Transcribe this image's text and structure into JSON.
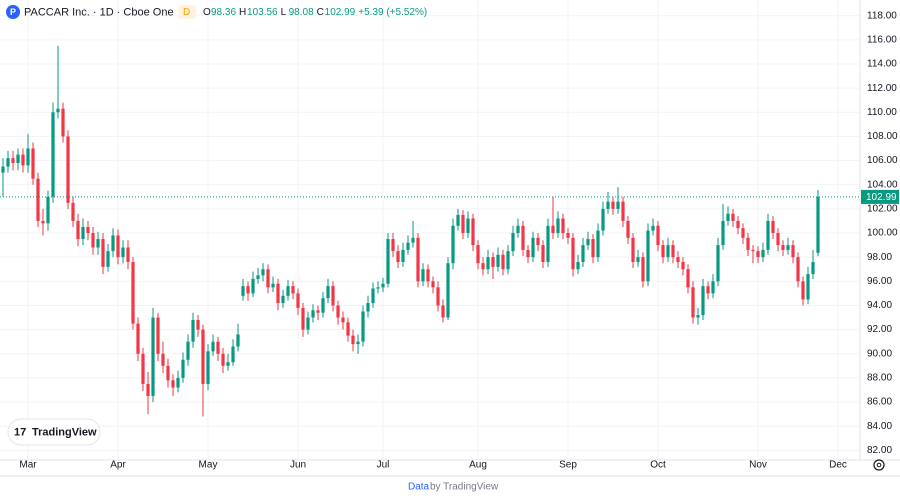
{
  "header": {
    "symbol": "PACCAR Inc. · 1D · Cboe One",
    "badge": "D",
    "quote": [
      {
        "label": "O",
        "value": "98.36"
      },
      {
        "label": "H",
        "value": "103.56"
      },
      {
        "label": "L",
        "value": "98.08"
      },
      {
        "label": "C",
        "value": "102.99"
      }
    ],
    "change": "+5.39 (+5.52%)"
  },
  "logo": "TradingView",
  "footer": {
    "link": "Data",
    "text": "by TradingView"
  },
  "chart_data": {
    "type": "candlestick",
    "up_color": "#089981",
    "down_color": "#f23645",
    "grid": true,
    "ylim": [
      81.2,
      119.3
    ],
    "xlim": [
      -0.6,
      171.4
    ],
    "yticks": [
      {
        "value": 82,
        "label": "82.00"
      },
      {
        "value": 84,
        "label": "84.00"
      },
      {
        "value": 86,
        "label": "86.00"
      },
      {
        "value": 88,
        "label": "88.00"
      },
      {
        "value": 90,
        "label": "90.00"
      },
      {
        "value": 92,
        "label": "92.00"
      },
      {
        "value": 94,
        "label": "94.00"
      },
      {
        "value": 96,
        "label": "96.00"
      },
      {
        "value": 98,
        "label": "98.00"
      },
      {
        "value": 100,
        "label": "100.00"
      },
      {
        "value": 102,
        "label": "102.00"
      },
      {
        "value": 104,
        "label": "104.00"
      },
      {
        "value": 106,
        "label": "106.00"
      },
      {
        "value": 108,
        "label": "108.00"
      },
      {
        "value": 110,
        "label": "110.00"
      },
      {
        "value": 112,
        "label": "112.00"
      },
      {
        "value": 114,
        "label": "114.00"
      },
      {
        "value": 116,
        "label": "116.00"
      },
      {
        "value": 118,
        "label": "118.00"
      }
    ],
    "xticks": [
      {
        "value": 5,
        "label": "Mar"
      },
      {
        "value": 23,
        "label": "Apr"
      },
      {
        "value": 41,
        "label": "May"
      },
      {
        "value": 59,
        "label": "Jun"
      },
      {
        "value": 76,
        "label": "Jul"
      },
      {
        "value": 95,
        "label": "Aug"
      },
      {
        "value": 113,
        "label": "Sep"
      },
      {
        "value": 131,
        "label": "Oct"
      },
      {
        "value": 151,
        "label": "Nov"
      },
      {
        "value": 167,
        "label": "Dec"
      }
    ],
    "ohlc": [
      [
        105.0,
        106.2,
        103.0,
        105.5
      ],
      [
        105.5,
        106.8,
        105.0,
        106.2
      ],
      [
        106.2,
        106.8,
        105.2,
        105.8
      ],
      [
        105.8,
        107.0,
        105.2,
        106.5
      ],
      [
        106.5,
        107.0,
        105.0,
        105.6
      ],
      [
        105.6,
        108.2,
        105.0,
        107.0
      ],
      [
        107.0,
        107.5,
        104.0,
        104.5
      ],
      [
        104.5,
        105.0,
        100.5,
        101.0
      ],
      [
        101.0,
        102.0,
        99.8,
        100.8
      ],
      [
        100.8,
        103.5,
        100.2,
        103.0
      ],
      [
        103.0,
        110.8,
        102.5,
        110.0
      ],
      [
        110.0,
        115.5,
        109.5,
        110.3
      ],
      [
        110.3,
        110.8,
        107.5,
        108.0
      ],
      [
        108.0,
        108.5,
        102.0,
        102.5
      ],
      [
        102.5,
        103.0,
        100.5,
        101.0
      ],
      [
        101.0,
        101.6,
        98.9,
        99.5
      ],
      [
        99.5,
        101.2,
        99.0,
        100.5
      ],
      [
        100.5,
        101.0,
        99.4,
        100.0
      ],
      [
        100.0,
        100.5,
        98.2,
        98.8
      ],
      [
        98.8,
        100.1,
        98.2,
        99.5
      ],
      [
        99.5,
        100.0,
        96.6,
        97.2
      ],
      [
        97.2,
        99.1,
        96.8,
        98.5
      ],
      [
        98.5,
        100.4,
        98.0,
        99.8
      ],
      [
        99.8,
        100.3,
        97.4,
        98.0
      ],
      [
        98.0,
        99.4,
        97.5,
        98.8
      ],
      [
        98.8,
        99.4,
        97.0,
        97.6
      ],
      [
        97.6,
        98.0,
        92.0,
        92.5
      ],
      [
        92.5,
        93.0,
        89.4,
        90.0
      ],
      [
        90.0,
        90.5,
        86.9,
        87.5
      ],
      [
        87.5,
        88.5,
        85.0,
        86.5
      ],
      [
        86.5,
        93.8,
        86.0,
        93.0
      ],
      [
        93.0,
        93.4,
        89.4,
        90.0
      ],
      [
        90.0,
        91.0,
        88.4,
        89.0
      ],
      [
        89.0,
        89.6,
        87.2,
        87.8
      ],
      [
        87.8,
        88.3,
        86.5,
        87.2
      ],
      [
        87.2,
        88.6,
        86.8,
        88.0
      ],
      [
        88.0,
        90.1,
        87.6,
        89.5
      ],
      [
        89.5,
        91.6,
        89.0,
        91.0
      ],
      [
        91.0,
        93.4,
        90.5,
        92.8
      ],
      [
        92.8,
        93.2,
        91.4,
        92.0
      ],
      [
        92.0,
        92.4,
        84.8,
        87.5
      ],
      [
        87.5,
        90.8,
        87.0,
        90.2
      ],
      [
        90.2,
        91.6,
        89.8,
        91.0
      ],
      [
        91.0,
        91.4,
        89.4,
        90.0
      ],
      [
        90.0,
        90.5,
        88.4,
        89.0
      ],
      [
        89.0,
        90.0,
        88.6,
        89.3
      ],
      [
        89.3,
        91.2,
        89.0,
        90.6
      ],
      [
        90.6,
        92.5,
        90.2,
        91.6
      ],
      [
        94.8,
        96.2,
        94.4,
        95.6
      ],
      [
        95.6,
        96.0,
        94.4,
        95.0
      ],
      [
        95.0,
        96.8,
        94.7,
        96.2
      ],
      [
        96.2,
        97.1,
        95.8,
        96.5
      ],
      [
        96.5,
        97.5,
        96.0,
        97.0
      ],
      [
        97.0,
        97.4,
        95.0,
        95.5
      ],
      [
        95.5,
        96.4,
        95.1,
        95.8
      ],
      [
        95.8,
        96.2,
        93.6,
        94.2
      ],
      [
        94.2,
        95.3,
        93.8,
        94.8
      ],
      [
        94.8,
        96.1,
        94.4,
        95.6
      ],
      [
        95.6,
        96.0,
        94.5,
        95.0
      ],
      [
        95.0,
        95.4,
        93.2,
        93.8
      ],
      [
        93.8,
        94.2,
        91.4,
        92.0
      ],
      [
        92.0,
        93.5,
        91.6,
        93.0
      ],
      [
        93.0,
        94.1,
        92.6,
        93.6
      ],
      [
        93.6,
        94.0,
        92.8,
        93.4
      ],
      [
        93.4,
        95.1,
        93.0,
        94.6
      ],
      [
        94.6,
        96.2,
        94.2,
        95.6
      ],
      [
        95.6,
        96.0,
        93.5,
        94.0
      ],
      [
        94.0,
        94.4,
        92.4,
        93.0
      ],
      [
        93.0,
        93.5,
        92.0,
        92.6
      ],
      [
        92.6,
        93.0,
        91.0,
        91.5
      ],
      [
        91.5,
        92.0,
        90.2,
        90.8
      ],
      [
        90.8,
        91.6,
        90.0,
        91.0
      ],
      [
        91.0,
        94.0,
        90.6,
        93.5
      ],
      [
        93.5,
        94.8,
        93.0,
        94.2
      ],
      [
        94.2,
        95.9,
        93.8,
        95.4
      ],
      [
        95.4,
        96.0,
        95.0,
        95.5
      ],
      [
        95.5,
        96.3,
        95.1,
        95.8
      ],
      [
        95.8,
        100.0,
        95.5,
        99.5
      ],
      [
        99.5,
        100.0,
        98.0,
        98.5
      ],
      [
        98.5,
        99.0,
        97.1,
        97.6
      ],
      [
        97.6,
        99.2,
        97.2,
        98.6
      ],
      [
        98.6,
        99.8,
        98.2,
        99.2
      ],
      [
        99.2,
        101.0,
        98.8,
        99.6
      ],
      [
        99.6,
        100.0,
        95.5,
        96.0
      ],
      [
        96.0,
        97.5,
        95.6,
        97.0
      ],
      [
        97.0,
        97.4,
        95.5,
        96.0
      ],
      [
        96.0,
        96.4,
        95.0,
        95.5
      ],
      [
        95.5,
        96.0,
        93.5,
        94.0
      ],
      [
        94.0,
        94.5,
        92.6,
        93.0
      ],
      [
        93.0,
        98.0,
        92.8,
        97.5
      ],
      [
        97.5,
        101.2,
        97.0,
        100.6
      ],
      [
        100.6,
        102.0,
        100.2,
        101.5
      ],
      [
        101.5,
        101.9,
        99.5,
        100.0
      ],
      [
        100.0,
        101.8,
        99.6,
        101.2
      ],
      [
        101.2,
        101.6,
        98.5,
        99.0
      ],
      [
        99.0,
        99.4,
        97.0,
        97.5
      ],
      [
        97.5,
        98.0,
        96.5,
        97.0
      ],
      [
        97.0,
        98.6,
        96.6,
        98.0
      ],
      [
        98.0,
        98.4,
        96.2,
        97.2
      ],
      [
        97.2,
        98.8,
        96.8,
        98.2
      ],
      [
        98.2,
        98.6,
        96.5,
        97.0
      ],
      [
        97.0,
        99.0,
        96.6,
        98.5
      ],
      [
        98.5,
        100.6,
        98.1,
        100.0
      ],
      [
        100.0,
        101.2,
        99.6,
        100.6
      ],
      [
        100.6,
        101.0,
        98.1,
        98.6
      ],
      [
        98.6,
        99.0,
        97.5,
        98.0
      ],
      [
        98.0,
        100.1,
        97.6,
        99.6
      ],
      [
        99.6,
        100.0,
        98.5,
        99.0
      ],
      [
        99.0,
        99.4,
        97.1,
        97.6
      ],
      [
        97.6,
        101.2,
        97.2,
        100.6
      ],
      [
        100.6,
        103.0,
        99.5,
        100.0
      ],
      [
        100.0,
        101.8,
        99.6,
        101.2
      ],
      [
        101.2,
        101.6,
        99.5,
        100.0
      ],
      [
        100.0,
        100.4,
        99.1,
        99.6
      ],
      [
        99.6,
        100.0,
        96.4,
        97.0
      ],
      [
        97.0,
        98.2,
        96.6,
        97.6
      ],
      [
        97.6,
        99.6,
        97.2,
        99.0
      ],
      [
        99.0,
        100.1,
        98.6,
        99.5
      ],
      [
        99.5,
        99.9,
        97.5,
        98.0
      ],
      [
        98.0,
        100.8,
        97.6,
        100.2
      ],
      [
        100.2,
        102.6,
        99.8,
        102.0
      ],
      [
        102.0,
        103.4,
        101.6,
        102.6
      ],
      [
        102.6,
        103.0,
        101.5,
        102.0
      ],
      [
        102.0,
        103.8,
        101.6,
        102.6
      ],
      [
        102.6,
        103.0,
        100.5,
        101.0
      ],
      [
        101.0,
        101.4,
        99.1,
        99.6
      ],
      [
        99.6,
        100.0,
        97.1,
        97.6
      ],
      [
        97.6,
        98.6,
        97.2,
        98.0
      ],
      [
        98.0,
        98.4,
        95.5,
        96.0
      ],
      [
        96.0,
        100.8,
        95.6,
        100.2
      ],
      [
        100.2,
        101.2,
        99.8,
        100.6
      ],
      [
        100.6,
        101.0,
        98.5,
        99.0
      ],
      [
        99.0,
        99.4,
        97.5,
        98.0
      ],
      [
        98.0,
        99.6,
        97.6,
        99.0
      ],
      [
        99.0,
        99.4,
        97.5,
        98.0
      ],
      [
        98.0,
        98.5,
        97.1,
        97.6
      ],
      [
        97.6,
        98.0,
        96.5,
        97.0
      ],
      [
        97.0,
        97.4,
        95.0,
        95.5
      ],
      [
        95.5,
        96.0,
        92.5,
        93.0
      ],
      [
        93.0,
        93.8,
        92.4,
        93.2
      ],
      [
        93.2,
        96.2,
        92.8,
        95.6
      ],
      [
        95.6,
        96.0,
        94.5,
        95.0
      ],
      [
        95.0,
        96.6,
        94.6,
        96.0
      ],
      [
        96.0,
        99.6,
        95.6,
        99.0
      ],
      [
        99.0,
        102.4,
        98.6,
        101.0
      ],
      [
        101.0,
        102.2,
        100.6,
        101.6
      ],
      [
        101.6,
        102.0,
        100.5,
        101.0
      ],
      [
        101.0,
        101.4,
        99.9,
        100.4
      ],
      [
        100.4,
        100.8,
        99.1,
        99.6
      ],
      [
        99.6,
        100.0,
        98.1,
        98.6
      ],
      [
        98.6,
        99.0,
        97.5,
        98.5
      ],
      [
        98.5,
        98.9,
        97.5,
        98.0
      ],
      [
        98.0,
        99.2,
        97.6,
        98.6
      ],
      [
        98.6,
        101.6,
        98.2,
        101.0
      ],
      [
        101.0,
        101.4,
        99.5,
        100.0
      ],
      [
        100.0,
        100.4,
        98.5,
        99.0
      ],
      [
        99.0,
        99.4,
        98.1,
        98.6
      ],
      [
        98.6,
        99.6,
        98.2,
        99.0
      ],
      [
        99.0,
        99.4,
        97.5,
        98.0
      ],
      [
        98.0,
        98.4,
        95.5,
        96.0
      ],
      [
        96.0,
        96.4,
        94.0,
        94.5
      ],
      [
        94.5,
        97.2,
        94.1,
        96.6
      ],
      [
        96.6,
        98.6,
        96.2,
        97.6
      ],
      [
        98.36,
        103.56,
        98.08,
        102.99
      ]
    ]
  }
}
